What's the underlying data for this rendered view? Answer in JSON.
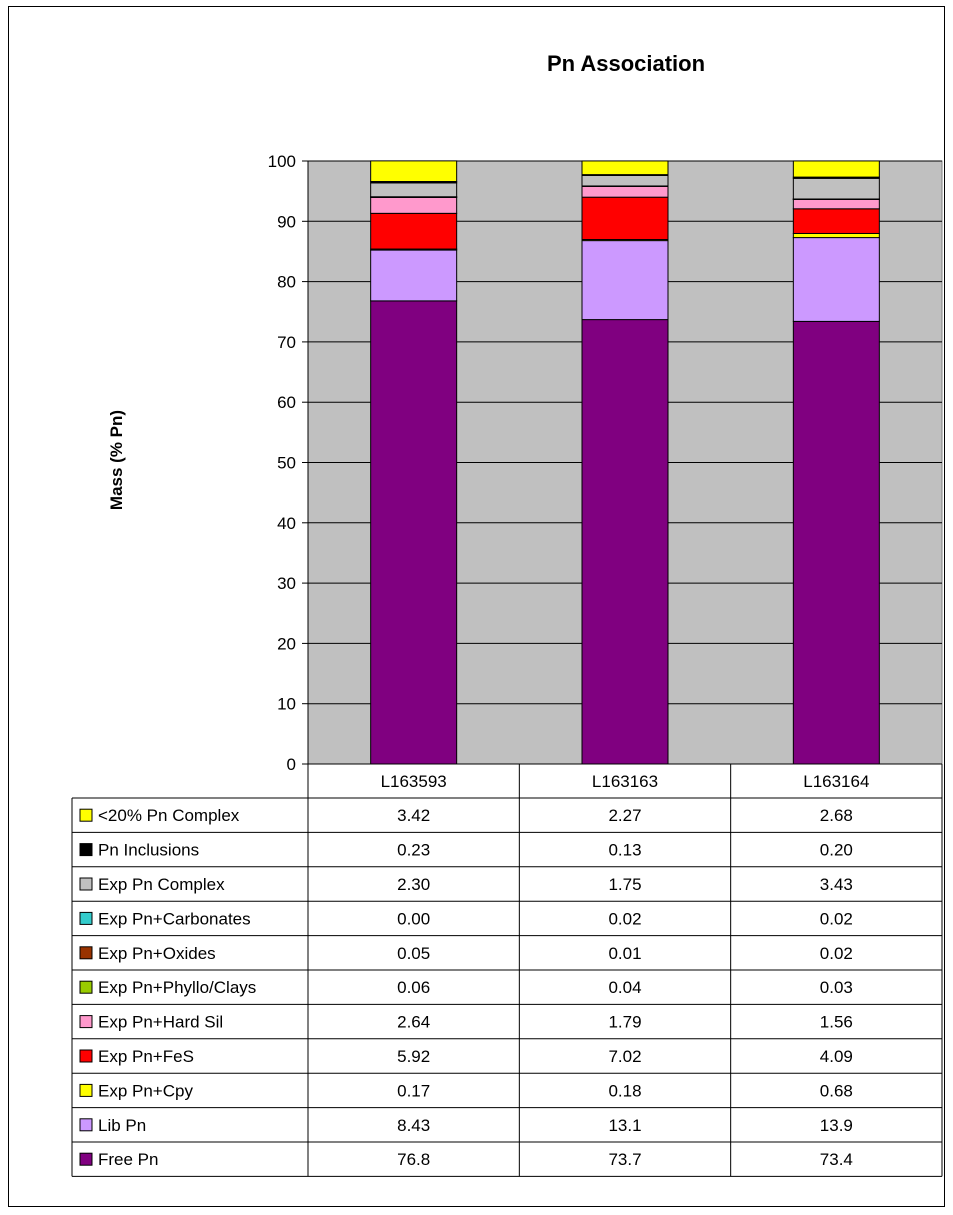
{
  "chart_data": {
    "type": "bar",
    "stacked": true,
    "title": "Pn Association",
    "ylabel": "Mass (% Pn)",
    "xlabel": "",
    "ylim": [
      0,
      100
    ],
    "yticks": [
      0,
      10,
      20,
      30,
      40,
      50,
      60,
      70,
      80,
      90,
      100
    ],
    "grid": true,
    "legend": "data-table",
    "categories": [
      "L163593",
      "L163163",
      "L163164"
    ],
    "series": [
      {
        "name": "Free Pn",
        "color": "#800080",
        "values": [
          76.8,
          73.7,
          73.4
        ],
        "labels": [
          "76.8",
          "73.7",
          "73.4"
        ]
      },
      {
        "name": "Lib Pn",
        "color": "#cc99ff",
        "values": [
          8.43,
          13.1,
          13.9
        ],
        "labels": [
          "8.43",
          "13.1",
          "13.9"
        ]
      },
      {
        "name": "Exp Pn+Cpy",
        "color": "#ffff00",
        "values": [
          0.17,
          0.18,
          0.68
        ],
        "labels": [
          "0.17",
          "0.18",
          "0.68"
        ]
      },
      {
        "name": "Exp Pn+FeS",
        "color": "#ff0000",
        "values": [
          5.92,
          7.02,
          4.09
        ],
        "labels": [
          "5.92",
          "7.02",
          "4.09"
        ]
      },
      {
        "name": "Exp Pn+Hard Sil",
        "color": "#ff99cc",
        "values": [
          2.64,
          1.79,
          1.56
        ],
        "labels": [
          "2.64",
          "1.79",
          "1.56"
        ]
      },
      {
        "name": "Exp Pn+Phyllo/Clays",
        "color": "#99cc00",
        "values": [
          0.06,
          0.04,
          0.03
        ],
        "labels": [
          "0.06",
          "0.04",
          "0.03"
        ]
      },
      {
        "name": "Exp Pn+Oxides",
        "color": "#993300",
        "values": [
          0.05,
          0.01,
          0.02
        ],
        "labels": [
          "0.05",
          "0.01",
          "0.02"
        ]
      },
      {
        "name": "Exp Pn+Carbonates",
        "color": "#33cccc",
        "values": [
          0.0,
          0.02,
          0.02
        ],
        "labels": [
          "0.00",
          "0.02",
          "0.02"
        ]
      },
      {
        "name": "Exp Pn Complex",
        "color": "#c0c0c0",
        "values": [
          2.3,
          1.75,
          3.43
        ],
        "labels": [
          "2.30",
          "1.75",
          "3.43"
        ]
      },
      {
        "name": "Pn Inclusions",
        "color": "#000000",
        "values": [
          0.23,
          0.13,
          0.2
        ],
        "labels": [
          "0.23",
          "0.13",
          "0.20"
        ]
      },
      {
        "name": "<20% Pn Complex",
        "color": "#ffff00",
        "values": [
          3.42,
          2.27,
          2.68
        ],
        "labels": [
          "3.42",
          "2.27",
          "2.68"
        ]
      }
    ],
    "plot_background": "#c0c0c0"
  }
}
